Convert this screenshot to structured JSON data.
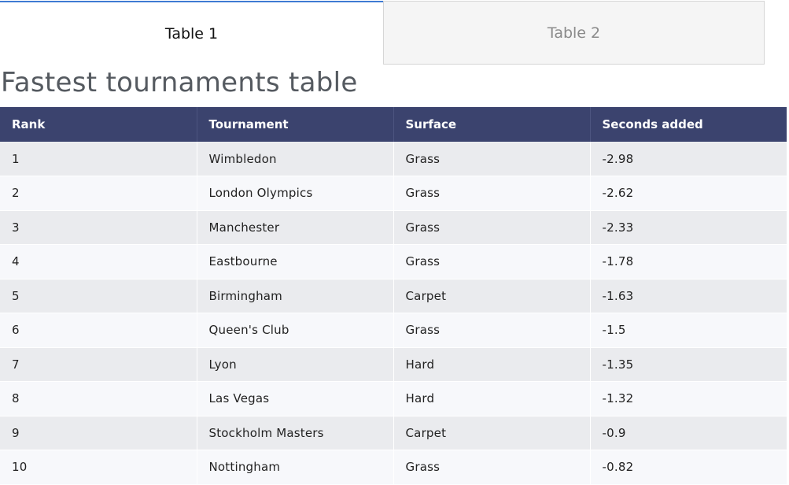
{
  "tabs": [
    {
      "label": "Table 1",
      "active": true
    },
    {
      "label": "Table 2",
      "active": false
    }
  ],
  "page_title": "Fastest tournaments table",
  "table": {
    "columns": [
      "Rank",
      "Tournament",
      "Surface",
      "Seconds added"
    ],
    "rows": [
      [
        "1",
        "Wimbledon",
        "Grass",
        "-2.98"
      ],
      [
        "2",
        "London Olympics",
        "Grass",
        "-2.62"
      ],
      [
        "3",
        "Manchester",
        "Grass",
        "-2.33"
      ],
      [
        "4",
        "Eastbourne",
        "Grass",
        "-1.78"
      ],
      [
        "5",
        "Birmingham",
        "Carpet",
        "-1.63"
      ],
      [
        "6",
        "Queen's Club",
        "Grass",
        "-1.5"
      ],
      [
        "7",
        "Lyon",
        "Hard",
        "-1.35"
      ],
      [
        "8",
        "Las Vegas",
        "Hard",
        "-1.32"
      ],
      [
        "9",
        "Stockholm Masters",
        "Carpet",
        "-0.9"
      ],
      [
        "10",
        "Nottingham",
        "Grass",
        "-0.82"
      ]
    ]
  },
  "colors": {
    "header_bg": "#3b436e",
    "active_tab_border": "#3f7bd3",
    "row_odd": "#eaebee",
    "row_even": "#f7f8fb"
  }
}
